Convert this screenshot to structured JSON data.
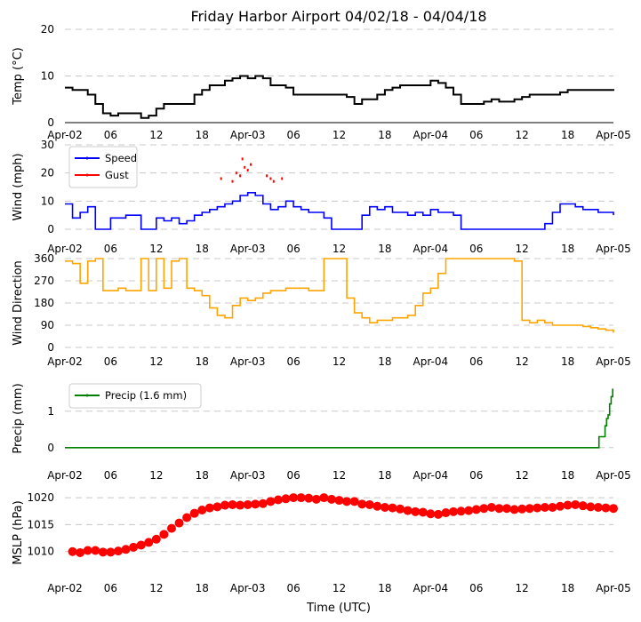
{
  "figure": {
    "title": "Friday Harbor Airport 04/02/18 - 04/04/18",
    "xlabel": "Time (UTC)"
  },
  "chart_data": [
    {
      "id": "temp",
      "type": "line",
      "ylabel": "Temp (°C)",
      "ylim": [
        0,
        20
      ],
      "yticks": [
        0,
        10,
        20
      ],
      "xticks": [
        "Apr-02",
        "06",
        "12",
        "18",
        "Apr-03",
        "06",
        "12",
        "18",
        "Apr-04",
        "06",
        "12",
        "18",
        "Apr-05"
      ],
      "grid": true,
      "series": [
        {
          "name": "Temperature",
          "color": "#000000",
          "x": [
            0,
            1,
            2,
            3,
            4,
            5,
            6,
            7,
            8,
            9,
            10,
            11,
            12,
            13,
            14,
            15,
            16,
            17,
            18,
            19,
            20,
            21,
            22,
            23,
            24,
            25,
            26,
            27,
            28,
            29,
            30,
            31,
            32,
            33,
            34,
            35,
            36,
            37,
            38,
            39,
            40,
            41,
            42,
            43,
            44,
            45,
            46,
            47,
            48,
            49,
            50,
            51,
            52,
            53,
            54,
            55,
            56,
            57,
            58,
            59,
            60,
            61,
            62,
            63,
            64,
            65,
            66,
            67,
            68,
            69,
            70,
            71,
            72
          ],
          "y": [
            7.5,
            7,
            7,
            6,
            4,
            2,
            1.5,
            2,
            2,
            2,
            1,
            1.5,
            3,
            4,
            4,
            4,
            4,
            6,
            7,
            8,
            8,
            9,
            9.5,
            10,
            9.5,
            10,
            9.5,
            8,
            8,
            7.5,
            6,
            6,
            6,
            6,
            6,
            6,
            6,
            5.5,
            4,
            5,
            5,
            6,
            7,
            7.5,
            8,
            8,
            8,
            8,
            9,
            8.5,
            7.5,
            6,
            4,
            4,
            4,
            4.5,
            5,
            4.5,
            4.5,
            5,
            5.5,
            6,
            6,
            6,
            6,
            6.5,
            7,
            7,
            7,
            7,
            7,
            7,
            6.8
          ]
        }
      ]
    },
    {
      "id": "wind",
      "type": "line",
      "ylabel": "Wind (mph)",
      "ylim": [
        0,
        30
      ],
      "yticks": [
        0,
        10,
        20,
        30
      ],
      "xticks": [
        "Apr-02",
        "06",
        "12",
        "18",
        "Apr-03",
        "06",
        "12",
        "18",
        "Apr-04",
        "06",
        "12",
        "18",
        "Apr-05"
      ],
      "grid": true,
      "legend": "top-left",
      "series": [
        {
          "name": "Speed",
          "color": "#0000ff",
          "x": [
            0,
            1,
            2,
            3,
            4,
            5,
            6,
            7,
            8,
            9,
            10,
            11,
            12,
            13,
            14,
            15,
            16,
            17,
            18,
            19,
            20,
            21,
            22,
            23,
            24,
            25,
            26,
            27,
            28,
            29,
            30,
            31,
            32,
            33,
            34,
            35,
            36,
            37,
            38,
            39,
            40,
            41,
            42,
            43,
            44,
            45,
            46,
            47,
            48,
            49,
            50,
            51,
            52,
            53,
            54,
            55,
            56,
            57,
            58,
            59,
            60,
            61,
            62,
            63,
            64,
            65,
            66,
            67,
            68,
            69,
            70,
            71,
            72
          ],
          "y": [
            9,
            4,
            6,
            8,
            0,
            0,
            4,
            4,
            5,
            5,
            0,
            0,
            4,
            3,
            4,
            2,
            3,
            5,
            6,
            7,
            8,
            9,
            10,
            12,
            13,
            12,
            9,
            7,
            8,
            10,
            8,
            7,
            6,
            6,
            4,
            0,
            0,
            0,
            0,
            5,
            8,
            7,
            8,
            6,
            6,
            5,
            6,
            5,
            7,
            6,
            6,
            5,
            0,
            0,
            0,
            0,
            0,
            0,
            0,
            0,
            0,
            0,
            0,
            2,
            6,
            9,
            9,
            8,
            7,
            7,
            6,
            6,
            5
          ]
        },
        {
          "name": "Gust",
          "color": "#ff0000",
          "x": [
            20.5,
            22,
            22.5,
            23,
            23.3,
            23.6,
            24,
            24.4,
            26.5,
            27,
            27.4,
            28.5
          ],
          "y": [
            18,
            17,
            20,
            19,
            25,
            22,
            21,
            23,
            19,
            18,
            17,
            18
          ]
        }
      ]
    },
    {
      "id": "wdir",
      "type": "line",
      "ylabel": "Wind Direction",
      "ylim": [
        0,
        360
      ],
      "yticks": [
        0,
        90,
        180,
        270,
        360
      ],
      "xticks": [
        "Apr-02",
        "06",
        "12",
        "18",
        "Apr-03",
        "06",
        "12",
        "18",
        "Apr-04",
        "06",
        "12",
        "18",
        "Apr-05"
      ],
      "grid": true,
      "series": [
        {
          "name": "Direction",
          "color": "#ffa500",
          "x": [
            0,
            1,
            2,
            3,
            4,
            5,
            6,
            7,
            8,
            9,
            10,
            11,
            12,
            13,
            14,
            15,
            16,
            17,
            18,
            19,
            20,
            21,
            22,
            23,
            24,
            25,
            26,
            27,
            28,
            29,
            30,
            31,
            32,
            33,
            34,
            35,
            36,
            37,
            38,
            39,
            40,
            41,
            42,
            43,
            44,
            45,
            46,
            47,
            48,
            49,
            50,
            51,
            52,
            53,
            54,
            55,
            56,
            57,
            58,
            59,
            60,
            61,
            62,
            63,
            64,
            65,
            66,
            67,
            68,
            69,
            70,
            71,
            72
          ],
          "y": [
            350,
            340,
            260,
            350,
            360,
            230,
            230,
            240,
            230,
            230,
            360,
            230,
            360,
            240,
            350,
            360,
            240,
            230,
            210,
            160,
            130,
            120,
            170,
            200,
            190,
            200,
            220,
            230,
            230,
            240,
            240,
            240,
            230,
            230,
            360,
            360,
            360,
            200,
            140,
            120,
            100,
            110,
            110,
            120,
            120,
            130,
            170,
            220,
            240,
            300,
            360,
            360,
            360,
            360,
            360,
            360,
            360,
            360,
            360,
            350,
            110,
            100,
            110,
            100,
            90,
            90,
            90,
            90,
            85,
            80,
            75,
            70,
            60
          ]
        }
      ]
    },
    {
      "id": "precip",
      "type": "line",
      "ylabel": "Precip (mm)",
      "ylim": [
        -0.2,
        1.8
      ],
      "yticks": [
        0,
        1
      ],
      "xticks": [
        "Apr-02",
        "06",
        "12",
        "18",
        "Apr-03",
        "06",
        "12",
        "18",
        "Apr-04",
        "06",
        "12",
        "18",
        "Apr-05"
      ],
      "grid": true,
      "legend": "top-left",
      "series": [
        {
          "name": "Precip (1.6 mm)",
          "color": "#008000",
          "x": [
            0,
            70,
            70.1,
            70.7,
            70.9,
            71.1,
            71.3,
            71.5,
            71.7,
            71.9,
            72
          ],
          "y": [
            0,
            0,
            0.3,
            0.3,
            0.6,
            0.8,
            0.9,
            1.2,
            1.4,
            1.6,
            1.6
          ]
        }
      ]
    },
    {
      "id": "mslp",
      "type": "scatter",
      "ylabel": "MSLP (hPa)",
      "ylim": [
        1006,
        1021
      ],
      "yticks": [
        1010,
        1015,
        1020
      ],
      "xticks": [
        "Apr-02",
        "06",
        "12",
        "18",
        "Apr-03",
        "06",
        "12",
        "18",
        "Apr-04",
        "06",
        "12",
        "18",
        "Apr-05"
      ],
      "grid": true,
      "series": [
        {
          "name": "MSLP",
          "color": "#ff0000",
          "x": [
            1,
            2,
            3,
            4,
            5,
            6,
            7,
            8,
            9,
            10,
            11,
            12,
            13,
            14,
            15,
            16,
            17,
            18,
            19,
            20,
            21,
            22,
            23,
            24,
            25,
            26,
            27,
            28,
            29,
            30,
            31,
            32,
            33,
            34,
            35,
            36,
            37,
            38,
            39,
            40,
            41,
            42,
            43,
            44,
            45,
            46,
            47,
            48,
            49,
            50,
            51,
            52,
            53,
            54,
            55,
            56,
            57,
            58,
            59,
            60,
            61,
            62,
            63,
            64,
            65,
            66,
            67,
            68,
            69,
            70,
            71,
            72
          ],
          "y": [
            1010,
            1009.8,
            1010.2,
            1010.2,
            1009.9,
            1009.9,
            1010.1,
            1010.4,
            1010.8,
            1011.2,
            1011.7,
            1012.3,
            1013.2,
            1014.3,
            1015.3,
            1016.3,
            1017.1,
            1017.7,
            1018.1,
            1018.3,
            1018.6,
            1018.7,
            1018.6,
            1018.7,
            1018.8,
            1018.9,
            1019.3,
            1019.6,
            1019.8,
            1020,
            1020,
            1019.9,
            1019.7,
            1020,
            1019.7,
            1019.5,
            1019.3,
            1019.3,
            1018.8,
            1018.7,
            1018.4,
            1018.2,
            1018.1,
            1017.9,
            1017.6,
            1017.4,
            1017.3,
            1017,
            1016.9,
            1017.2,
            1017.4,
            1017.5,
            1017.6,
            1017.8,
            1018,
            1018.2,
            1018,
            1018,
            1017.8,
            1017.9,
            1018,
            1018.1,
            1018.2,
            1018.2,
            1018.4,
            1018.6,
            1018.7,
            1018.5,
            1018.3,
            1018.2,
            1018.1,
            1018
          ]
        }
      ]
    }
  ]
}
